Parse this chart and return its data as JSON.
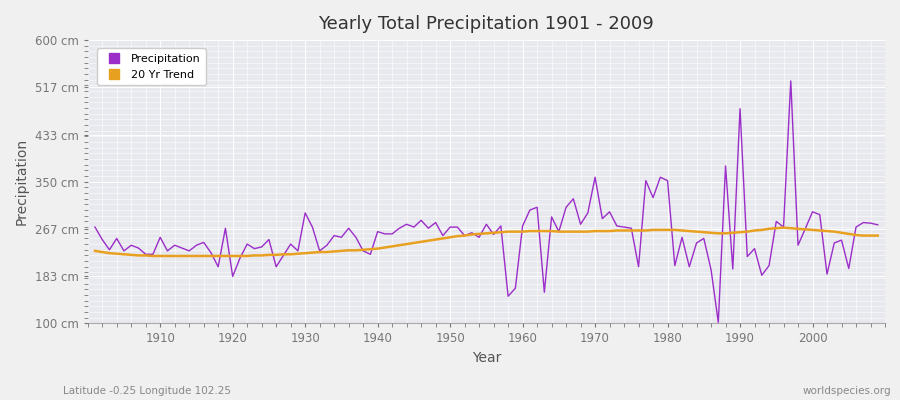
{
  "title": "Yearly Total Precipitation 1901 - 2009",
  "xlabel": "Year",
  "ylabel": "Precipitation",
  "subtitle": "Latitude -0.25 Longitude 102.25",
  "watermark": "worldspecies.org",
  "legend_labels": [
    "Precipitation",
    "20 Yr Trend"
  ],
  "precip_color": "#9B2EC8",
  "trend_color": "#E8A020",
  "bg_color": "#E8E8EF",
  "fig_color": "#F0F0F0",
  "grid_color": "#FFFFFF",
  "ylim": [
    100,
    600
  ],
  "yticks": [
    100,
    183,
    267,
    350,
    433,
    517,
    600
  ],
  "ytick_labels": [
    "100 cm",
    "183 cm",
    "267 cm",
    "350 cm",
    "433 cm",
    "517 cm",
    "600 cm"
  ],
  "xlim": [
    1900,
    2010
  ],
  "xticks": [
    1910,
    1920,
    1930,
    1940,
    1950,
    1960,
    1970,
    1980,
    1990,
    2000
  ],
  "years": [
    1901,
    1902,
    1903,
    1904,
    1905,
    1906,
    1907,
    1908,
    1909,
    1910,
    1911,
    1912,
    1913,
    1914,
    1915,
    1916,
    1917,
    1918,
    1919,
    1920,
    1921,
    1922,
    1923,
    1924,
    1925,
    1926,
    1927,
    1928,
    1929,
    1930,
    1931,
    1932,
    1933,
    1934,
    1935,
    1936,
    1937,
    1938,
    1939,
    1940,
    1941,
    1942,
    1943,
    1944,
    1945,
    1946,
    1947,
    1948,
    1949,
    1950,
    1951,
    1952,
    1953,
    1954,
    1955,
    1956,
    1957,
    1958,
    1959,
    1960,
    1961,
    1962,
    1963,
    1964,
    1965,
    1966,
    1967,
    1968,
    1969,
    1970,
    1971,
    1972,
    1973,
    1974,
    1975,
    1976,
    1977,
    1978,
    1979,
    1980,
    1981,
    1982,
    1983,
    1984,
    1985,
    1986,
    1987,
    1988,
    1989,
    1990,
    1991,
    1992,
    1993,
    1994,
    1995,
    1996,
    1997,
    1998,
    1999,
    2000,
    2001,
    2002,
    2003,
    2004,
    2005,
    2006,
    2007,
    2008,
    2009
  ],
  "precip": [
    270,
    248,
    230,
    250,
    228,
    238,
    233,
    222,
    222,
    252,
    228,
    238,
    233,
    228,
    238,
    243,
    225,
    200,
    268,
    183,
    215,
    240,
    232,
    235,
    248,
    200,
    220,
    240,
    228,
    295,
    270,
    228,
    238,
    255,
    252,
    268,
    252,
    228,
    222,
    262,
    258,
    258,
    268,
    275,
    270,
    282,
    268,
    278,
    255,
    270,
    270,
    255,
    260,
    252,
    275,
    257,
    272,
    148,
    162,
    272,
    300,
    305,
    155,
    288,
    262,
    305,
    320,
    275,
    295,
    358,
    285,
    297,
    272,
    270,
    268,
    200,
    352,
    322,
    358,
    352,
    202,
    252,
    200,
    242,
    250,
    195,
    102,
    378,
    196,
    479,
    218,
    232,
    185,
    202,
    280,
    270,
    528,
    238,
    267,
    297,
    292,
    187,
    242,
    247,
    197,
    270,
    278,
    277,
    274
  ],
  "trend": [
    228,
    226,
    224,
    223,
    222,
    221,
    220,
    220,
    219,
    219,
    219,
    219,
    219,
    219,
    219,
    219,
    219,
    219,
    219,
    219,
    219,
    219,
    220,
    220,
    221,
    221,
    222,
    222,
    223,
    224,
    225,
    226,
    226,
    227,
    228,
    229,
    229,
    230,
    231,
    232,
    234,
    236,
    238,
    240,
    242,
    244,
    246,
    248,
    250,
    252,
    254,
    255,
    257,
    258,
    259,
    260,
    261,
    262,
    262,
    262,
    263,
    263,
    263,
    263,
    262,
    262,
    262,
    262,
    262,
    263,
    263,
    263,
    264,
    264,
    264,
    264,
    264,
    265,
    265,
    265,
    265,
    264,
    263,
    262,
    261,
    260,
    259,
    259,
    260,
    261,
    262,
    264,
    265,
    267,
    268,
    269,
    268,
    267,
    266,
    265,
    264,
    263,
    262,
    260,
    258,
    256,
    255,
    255,
    255
  ]
}
